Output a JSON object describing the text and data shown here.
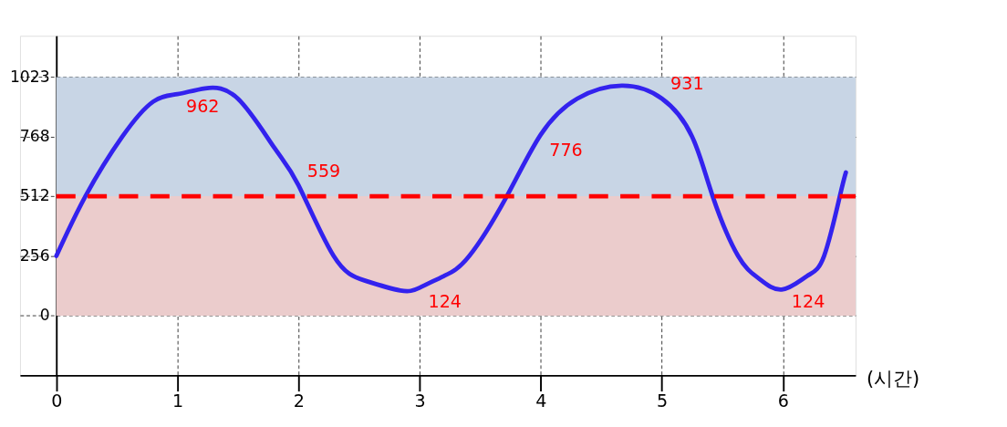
{
  "chart_data": {
    "type": "line",
    "xlabel": "(시간)",
    "xlim": [
      -0.3,
      6.6
    ],
    "ylim": [
      -256,
      1200
    ],
    "xticks": [
      0,
      1,
      2,
      3,
      4,
      5,
      6
    ],
    "yticks": [
      0,
      256,
      512,
      768,
      {
        "value": 1023,
        "label": "1023"
      }
    ],
    "grid": true,
    "marker": "none",
    "line_style": "solid",
    "series": [
      {
        "color": "#3322ee",
        "x": [
          0,
          0.24,
          0.545,
          0.8,
          1,
          1.23,
          1.5,
          1.8,
          2,
          2.29,
          2.55,
          2.84,
          3,
          3.2,
          3.41,
          3.72,
          4,
          4.3,
          4.67,
          5,
          5.25,
          5.42,
          5.63,
          5.8,
          5.99,
          6.2,
          6.34,
          6.47,
          6.52
        ],
        "values": [
          256,
          512,
          768,
          918,
          950,
          975,
          930,
          720,
          559,
          256,
          150,
          108,
          120,
          170,
          256,
          512,
          776,
          930,
          986,
          931,
          768,
          512,
          256,
          160,
          112,
          170,
          256,
          512,
          614
        ]
      }
    ],
    "bands": [
      {
        "axis": "y",
        "from": 0,
        "to": 512,
        "color": "#ebcccc"
      },
      {
        "axis": "y",
        "from": 512,
        "to": 1023,
        "color": "#c8d5e5"
      }
    ],
    "ref_lines": [
      {
        "axis": "y",
        "value": 512,
        "color": "#ff0000",
        "line_style": "dashed"
      }
    ],
    "annotations": [
      {
        "text": "962",
        "x": 1,
        "y": 962
      },
      {
        "text": "559",
        "x": 2,
        "y": 559
      },
      {
        "text": "124",
        "x": 3,
        "y": 124
      },
      {
        "text": "776",
        "x": 4,
        "y": 776
      },
      {
        "text": "931",
        "x": 5,
        "y": 931
      },
      {
        "text": "124",
        "x": 6,
        "y": 124
      }
    ]
  }
}
